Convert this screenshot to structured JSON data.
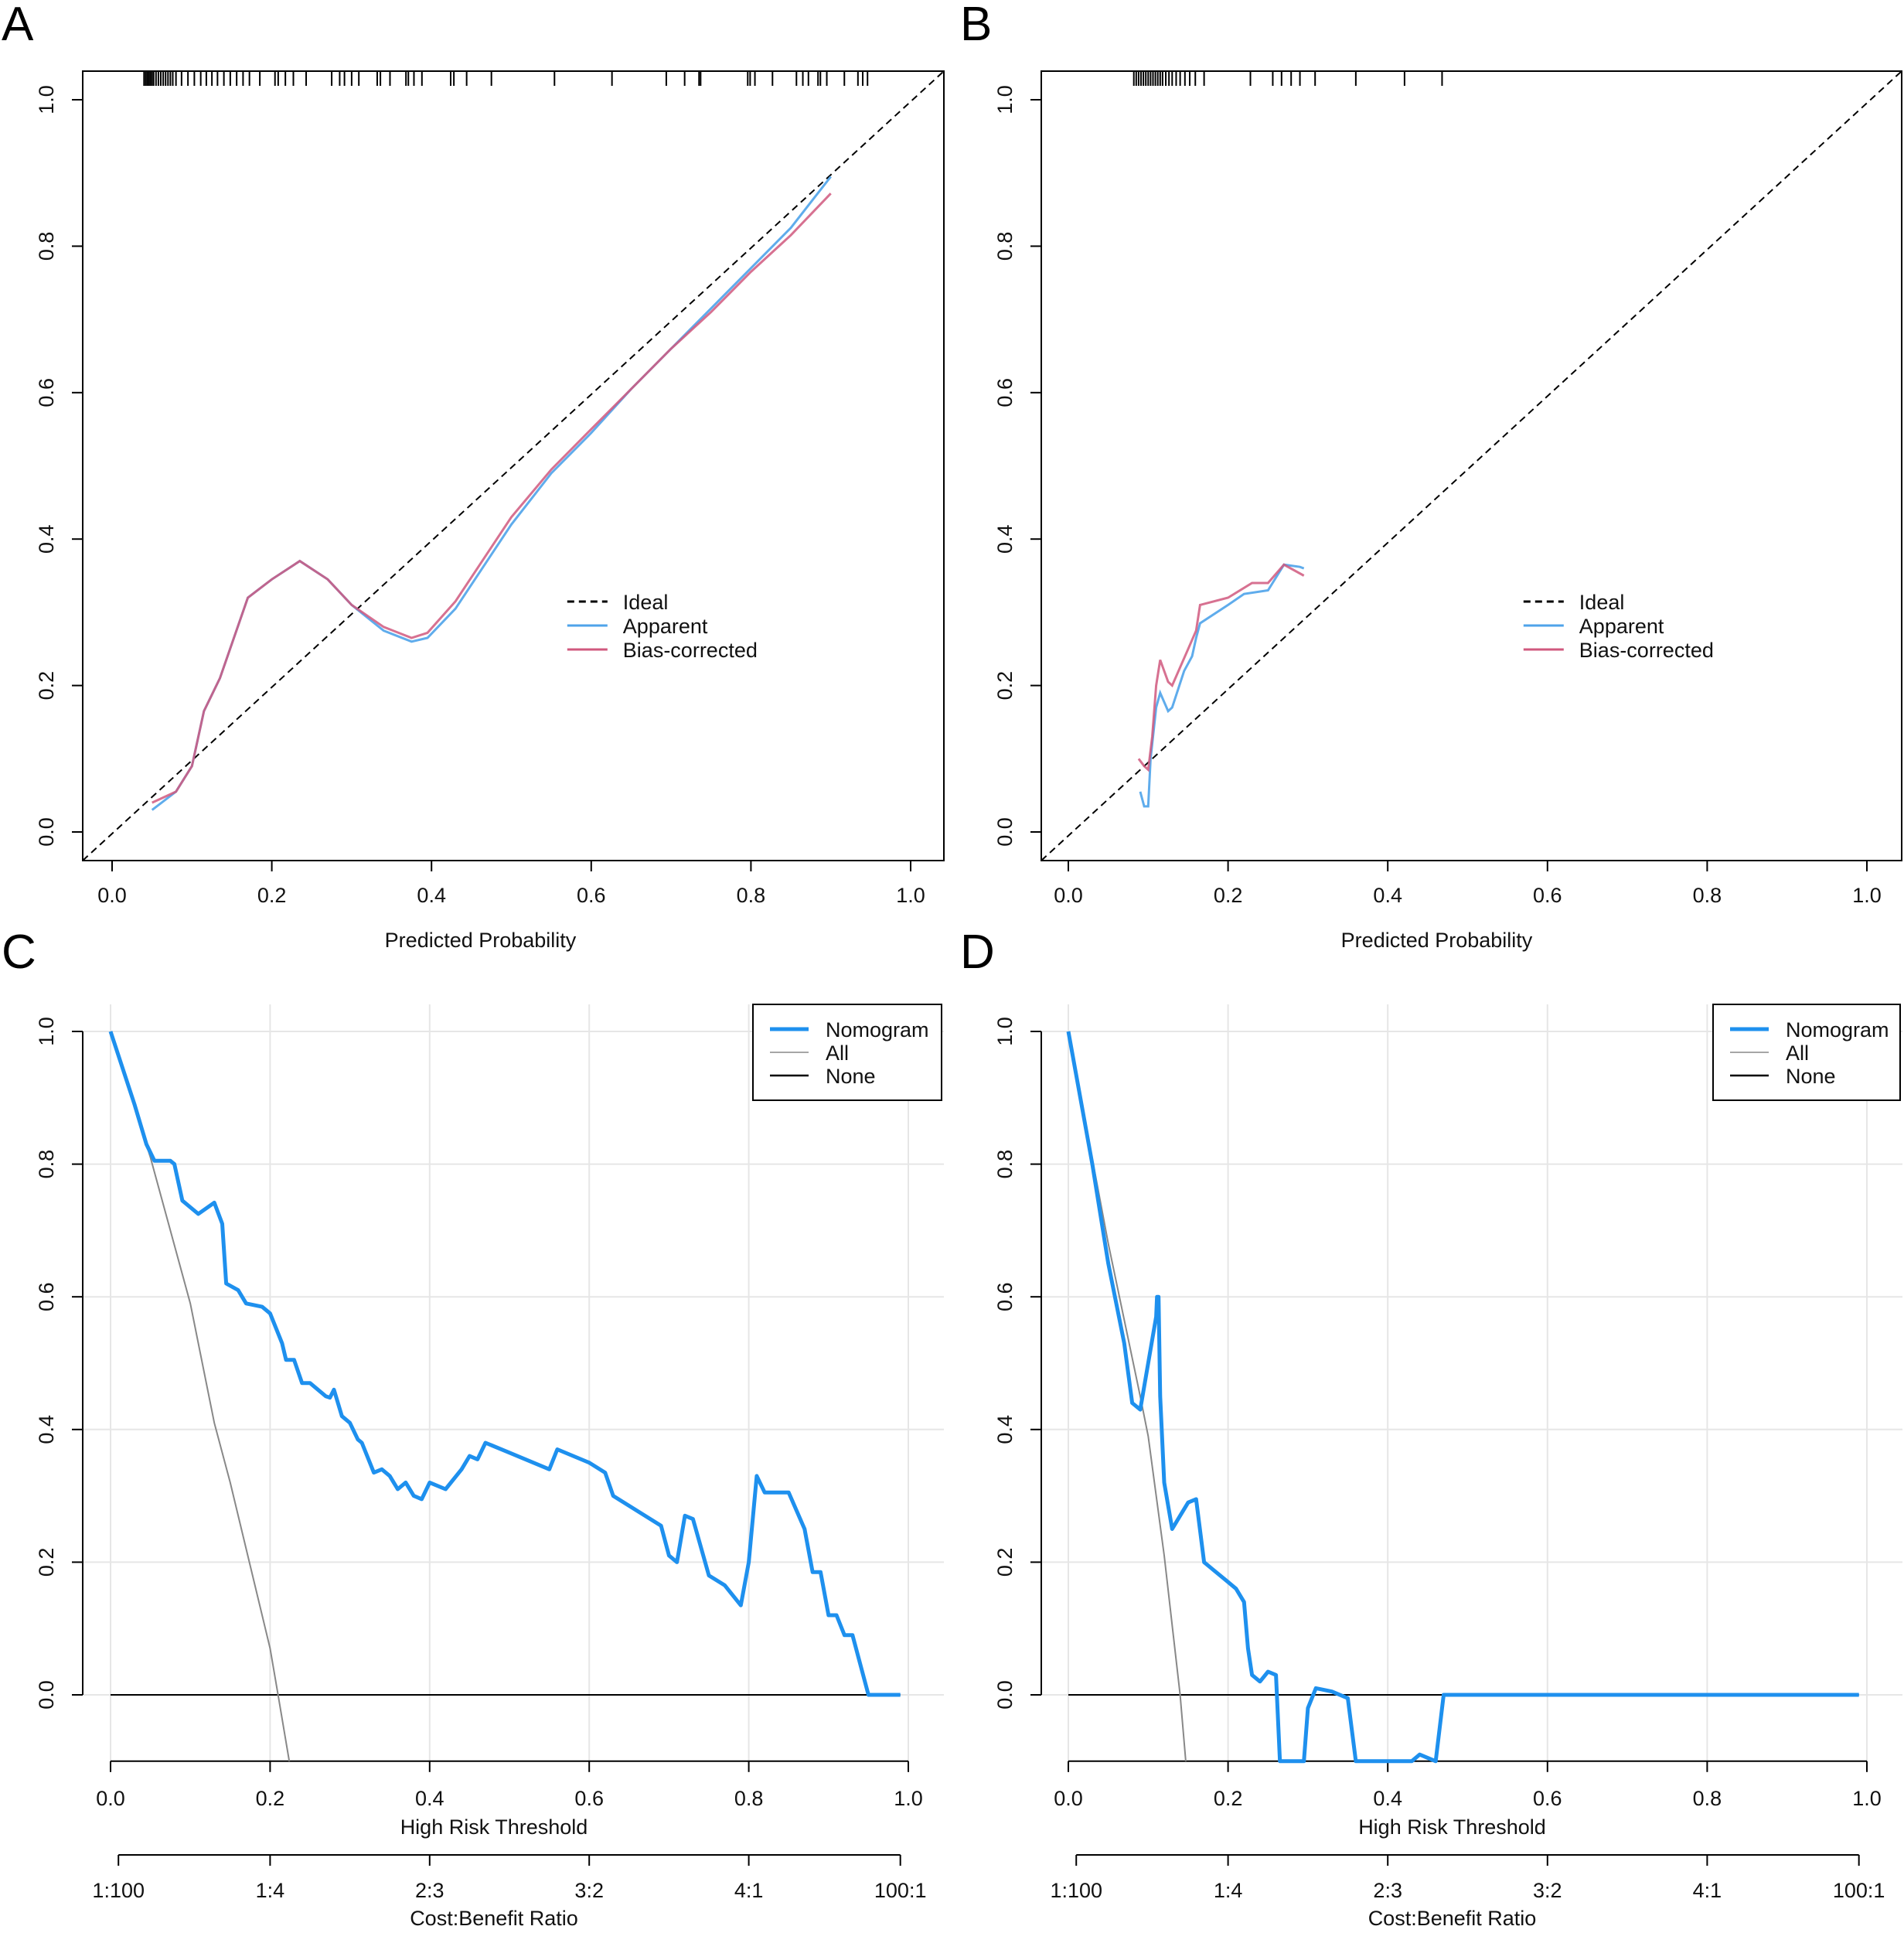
{
  "chart_data": [
    {
      "panel": "A",
      "type": "line",
      "kind": "calibration",
      "xlabel": "Predicted Probability",
      "ylabel": "",
      "xlim": [
        0,
        1
      ],
      "ylim": [
        0,
        1
      ],
      "xticks": [
        "0.0",
        "0.2",
        "0.4",
        "0.6",
        "0.8",
        "1.0"
      ],
      "yticks": [
        "0.0",
        "0.2",
        "0.4",
        "0.6",
        "0.8",
        "1.0"
      ],
      "legend": {
        "position": "center-right",
        "entries": [
          "Ideal",
          "Apparent",
          "Bias-corrected"
        ]
      },
      "colors": {
        "ideal": "#000000",
        "apparent": "#4ea3ea",
        "bias": "#d0587e"
      },
      "rug": [
        0.04,
        0.042,
        0.044,
        0.046,
        0.048,
        0.05,
        0.052,
        0.055,
        0.058,
        0.061,
        0.064,
        0.067,
        0.07,
        0.073,
        0.076,
        0.08,
        0.087,
        0.095,
        0.103,
        0.111,
        0.118,
        0.125,
        0.132,
        0.14,
        0.148,
        0.156,
        0.164,
        0.172,
        0.185,
        0.204,
        0.208,
        0.217,
        0.227,
        0.243,
        0.275,
        0.285,
        0.291,
        0.3,
        0.309,
        0.332,
        0.336,
        0.348,
        0.368,
        0.371,
        0.378,
        0.388,
        0.424,
        0.428,
        0.444,
        0.475,
        0.554,
        0.626,
        0.694,
        0.717,
        0.735,
        0.737,
        0.796,
        0.799,
        0.805,
        0.827,
        0.857,
        0.865,
        0.872,
        0.884,
        0.887,
        0.895,
        0.917,
        0.934,
        0.94,
        0.946
      ],
      "series": [
        {
          "name": "Apparent",
          "x": [
            0.05,
            0.08,
            0.1,
            0.115,
            0.135,
            0.17,
            0.2,
            0.235,
            0.27,
            0.3,
            0.34,
            0.375,
            0.395,
            0.43,
            0.5,
            0.55,
            0.6,
            0.65,
            0.7,
            0.75,
            0.8,
            0.85,
            0.9
          ],
          "y": [
            0.03,
            0.055,
            0.09,
            0.165,
            0.21,
            0.32,
            0.345,
            0.37,
            0.345,
            0.31,
            0.275,
            0.26,
            0.265,
            0.305,
            0.42,
            0.49,
            0.545,
            0.605,
            0.66,
            0.715,
            0.77,
            0.825,
            0.895
          ]
        },
        {
          "name": "Bias-corrected",
          "x": [
            0.05,
            0.08,
            0.1,
            0.115,
            0.135,
            0.17,
            0.2,
            0.235,
            0.27,
            0.3,
            0.34,
            0.375,
            0.395,
            0.43,
            0.5,
            0.55,
            0.6,
            0.65,
            0.7,
            0.75,
            0.8,
            0.85,
            0.9
          ],
          "y": [
            0.04,
            0.055,
            0.09,
            0.165,
            0.21,
            0.32,
            0.345,
            0.37,
            0.345,
            0.31,
            0.28,
            0.265,
            0.272,
            0.315,
            0.43,
            0.495,
            0.55,
            0.605,
            0.66,
            0.71,
            0.765,
            0.815,
            0.872
          ]
        }
      ]
    },
    {
      "panel": "B",
      "type": "line",
      "kind": "calibration",
      "xlabel": "Predicted Probability",
      "ylabel": "",
      "xlim": [
        0,
        1
      ],
      "ylim": [
        0,
        1
      ],
      "xticks": [
        "0.0",
        "0.2",
        "0.4",
        "0.6",
        "0.8",
        "1.0"
      ],
      "yticks": [
        "0.0",
        "0.2",
        "0.4",
        "0.6",
        "0.8",
        "1.0"
      ],
      "legend": {
        "position": "center-right",
        "entries": [
          "Ideal",
          "Apparent",
          "Bias-corrected"
        ]
      },
      "colors": {
        "ideal": "#000000",
        "apparent": "#4ea3ea",
        "bias": "#d0587e"
      },
      "rug": [
        0.082,
        0.085,
        0.088,
        0.091,
        0.094,
        0.097,
        0.1,
        0.103,
        0.106,
        0.109,
        0.112,
        0.115,
        0.118,
        0.122,
        0.126,
        0.13,
        0.135,
        0.14,
        0.146,
        0.152,
        0.159,
        0.17,
        0.228,
        0.256,
        0.267,
        0.279,
        0.29,
        0.309,
        0.36,
        0.421,
        0.468
      ],
      "series": [
        {
          "name": "Apparent",
          "x": [
            0.09,
            0.095,
            0.1,
            0.103,
            0.11,
            0.115,
            0.125,
            0.13,
            0.145,
            0.155,
            0.16,
            0.165,
            0.2,
            0.22,
            0.25,
            0.27,
            0.29,
            0.295
          ],
          "y": [
            0.055,
            0.035,
            0.035,
            0.1,
            0.17,
            0.19,
            0.165,
            0.17,
            0.22,
            0.24,
            0.265,
            0.285,
            0.31,
            0.325,
            0.33,
            0.365,
            0.362,
            0.36
          ]
        },
        {
          "name": "Bias-corrected",
          "x": [
            0.088,
            0.095,
            0.1,
            0.105,
            0.11,
            0.115,
            0.125,
            0.13,
            0.15,
            0.16,
            0.165,
            0.2,
            0.23,
            0.25,
            0.27,
            0.295
          ],
          "y": [
            0.1,
            0.09,
            0.085,
            0.13,
            0.2,
            0.235,
            0.205,
            0.2,
            0.25,
            0.275,
            0.31,
            0.32,
            0.34,
            0.34,
            0.365,
            0.35
          ]
        }
      ]
    },
    {
      "panel": "C",
      "type": "line",
      "kind": "dca",
      "xlabel": "High Risk Threshold",
      "x2label": "Cost:Benefit Ratio",
      "xlim": [
        0,
        1
      ],
      "ylim": [
        -0.1,
        1
      ],
      "xticks": [
        "0.0",
        "0.2",
        "0.4",
        "0.6",
        "0.8",
        "1.0"
      ],
      "yticks": [
        "0.0",
        "0.2",
        "0.4",
        "0.6",
        "0.8",
        "1.0"
      ],
      "x2ticks": [
        "1:100",
        "1:4",
        "2:3",
        "3:2",
        "4:1",
        "100:1"
      ],
      "legend": {
        "position": "top-right",
        "entries": [
          "Nomogram",
          "All",
          "None"
        ]
      },
      "colors": {
        "nomogram": "#1e90ee",
        "all": "#888888",
        "none": "#000000",
        "grid": "#e6e6e6"
      },
      "series": [
        {
          "name": "Nomogram",
          "x": [
            0,
            0.03,
            0.045,
            0.055,
            0.075,
            0.08,
            0.09,
            0.11,
            0.13,
            0.14,
            0.145,
            0.16,
            0.17,
            0.19,
            0.2,
            0.215,
            0.22,
            0.23,
            0.24,
            0.25,
            0.27,
            0.275,
            0.28,
            0.29,
            0.3,
            0.31,
            0.315,
            0.33,
            0.34,
            0.35,
            0.36,
            0.37,
            0.38,
            0.39,
            0.4,
            0.42,
            0.44,
            0.45,
            0.46,
            0.47,
            0.5,
            0.55,
            0.56,
            0.6,
            0.62,
            0.63,
            0.69,
            0.7,
            0.71,
            0.72,
            0.73,
            0.75,
            0.77,
            0.79,
            0.8,
            0.81,
            0.82,
            0.85,
            0.87,
            0.88,
            0.89,
            0.9,
            0.91,
            0.92,
            0.93,
            0.95,
            0.99
          ],
          "y": [
            1.0,
            0.89,
            0.83,
            0.805,
            0.805,
            0.8,
            0.745,
            0.725,
            0.742,
            0.71,
            0.62,
            0.61,
            0.59,
            0.585,
            0.575,
            0.53,
            0.505,
            0.505,
            0.47,
            0.47,
            0.45,
            0.448,
            0.46,
            0.42,
            0.41,
            0.385,
            0.38,
            0.335,
            0.34,
            0.33,
            0.31,
            0.32,
            0.3,
            0.295,
            0.32,
            0.31,
            0.34,
            0.36,
            0.355,
            0.38,
            0.365,
            0.34,
            0.37,
            0.35,
            0.335,
            0.3,
            0.255,
            0.21,
            0.2,
            0.27,
            0.265,
            0.18,
            0.165,
            0.135,
            0.2,
            0.33,
            0.305,
            0.305,
            0.25,
            0.185,
            0.185,
            0.12,
            0.12,
            0.09,
            0.09,
            0.0,
            0.0
          ]
        },
        {
          "name": "All",
          "x": [
            0,
            0.05,
            0.1,
            0.13,
            0.15,
            0.2,
            0.21,
            0.224
          ],
          "y": [
            1.0,
            0.81,
            0.59,
            0.41,
            0.32,
            0.07,
            0.0,
            -0.1
          ]
        },
        {
          "name": "None",
          "x": [
            0,
            0.99
          ],
          "y": [
            0,
            0
          ]
        }
      ]
    },
    {
      "panel": "D",
      "type": "line",
      "kind": "dca",
      "xlabel": "High Risk Threshold",
      "x2label": "Cost:Benefit Ratio",
      "xlim": [
        0,
        1
      ],
      "ylim": [
        -0.1,
        1
      ],
      "xticks": [
        "0.0",
        "0.2",
        "0.4",
        "0.6",
        "0.8",
        "1.0"
      ],
      "yticks": [
        "0.0",
        "0.2",
        "0.4",
        "0.6",
        "0.8",
        "1.0"
      ],
      "x2ticks": [
        "1:100",
        "1:4",
        "2:3",
        "3:2",
        "4:1",
        "100:1"
      ],
      "legend": {
        "position": "top-right",
        "entries": [
          "Nomogram",
          "All",
          "None"
        ]
      },
      "colors": {
        "nomogram": "#1e90ee",
        "all": "#888888",
        "none": "#000000",
        "grid": "#e6e6e6"
      },
      "series": [
        {
          "name": "Nomogram",
          "x": [
            0,
            0.03,
            0.05,
            0.07,
            0.08,
            0.09,
            0.1,
            0.11,
            0.111,
            0.113,
            0.115,
            0.12,
            0.13,
            0.14,
            0.15,
            0.16,
            0.17,
            0.18,
            0.2,
            0.21,
            0.22,
            0.225,
            0.23,
            0.24,
            0.25,
            0.26,
            0.265,
            0.295,
            0.3,
            0.31,
            0.33,
            0.35,
            0.36,
            0.43,
            0.44,
            0.46,
            0.47,
            0.99
          ],
          "y": [
            1.0,
            0.8,
            0.65,
            0.53,
            0.44,
            0.43,
            0.5,
            0.57,
            0.6,
            0.6,
            0.45,
            0.32,
            0.25,
            0.27,
            0.29,
            0.295,
            0.2,
            0.19,
            0.17,
            0.16,
            0.14,
            0.07,
            0.03,
            0.02,
            0.035,
            0.03,
            -0.1,
            -0.1,
            -0.02,
            0.01,
            0.005,
            -0.005,
            -0.1,
            -0.1,
            -0.09,
            -0.1,
            0.0,
            0.0
          ]
        },
        {
          "name": "All",
          "x": [
            0,
            0.05,
            0.09,
            0.1,
            0.12,
            0.14,
            0.147
          ],
          "y": [
            1.0,
            0.68,
            0.45,
            0.39,
            0.21,
            0.0,
            -0.1
          ]
        },
        {
          "name": "None",
          "x": [
            0,
            0.99
          ],
          "y": [
            0,
            0
          ]
        }
      ]
    }
  ]
}
